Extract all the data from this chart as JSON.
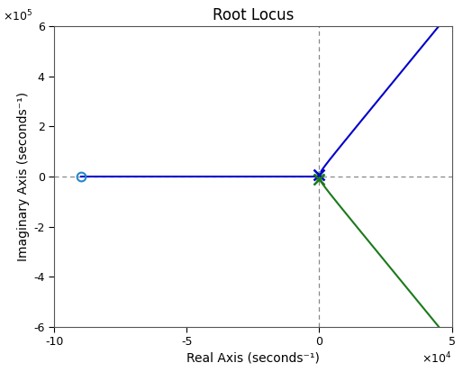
{
  "title": "Root Locus",
  "xlabel": "Real Axis (seconds⁻¹)",
  "ylabel": "Imaginary Axis (seconds⁻¹)",
  "xlim": [
    -100000.0,
    50000.0
  ],
  "ylim": [
    -600000.0,
    600000.0
  ],
  "xticks": [
    -100000.0,
    -50000.0,
    0,
    50000.0
  ],
  "xtick_labels": [
    "-10",
    "-5",
    "0",
    "5"
  ],
  "yticks": [
    -600000.0,
    -400000.0,
    -200000.0,
    0,
    200000.0,
    400000.0,
    600000.0
  ],
  "ytick_labels": [
    "-6",
    "-4",
    "-2",
    "0",
    "2",
    "4",
    "6"
  ],
  "bg_color": "#ffffff",
  "curve1_color": "#0000CC",
  "curve2_color": "#1a7a1a",
  "dashed_line_color": "#888888",
  "pole_circle_color": "#2288CC",
  "figsize": [
    5.14,
    4.13
  ],
  "dpi": 100
}
